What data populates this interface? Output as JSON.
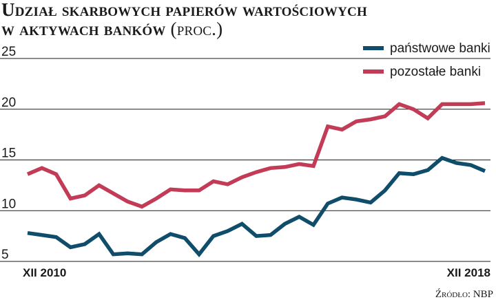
{
  "title": {
    "line1": "Udział skarbowych papierów wartościowych",
    "line2": "w aktywach banków",
    "unit": "(proc.)"
  },
  "source": "Źródło: NBP",
  "colors": {
    "panstwowe": "#0f4d6b",
    "pozostale": "#c23b57",
    "grid": "#1a1a1a"
  },
  "chart_data": {
    "type": "line",
    "title": "Udział skarbowych papierów wartościowych w aktywach banków (proc.)",
    "ylim": [
      5,
      25
    ],
    "yticks": [
      5,
      10,
      15,
      20,
      25
    ],
    "grid": true,
    "legend_position": "top-right",
    "x_tick_labels": [
      "XII 2010",
      "XII 2018"
    ],
    "x": [
      "XII 2010",
      "III 2011",
      "VI 2011",
      "IX 2011",
      "XII 2011",
      "III 2012",
      "VI 2012",
      "IX 2012",
      "XII 2012",
      "III 2013",
      "VI 2013",
      "IX 2013",
      "XII 2013",
      "III 2014",
      "VI 2014",
      "IX 2014",
      "XII 2014",
      "III 2015",
      "VI 2015",
      "IX 2015",
      "XII 2015",
      "III 2016",
      "VI 2016",
      "IX 2016",
      "XII 2016",
      "III 2017",
      "VI 2017",
      "IX 2017",
      "XII 2017",
      "III 2018",
      "VI 2018",
      "IX 2018",
      "XII 2018"
    ],
    "series": [
      {
        "name": "państwowe banki",
        "color": "#0f4d6b",
        "values": [
          7.8,
          7.6,
          7.4,
          6.4,
          6.7,
          7.7,
          5.7,
          5.8,
          5.7,
          6.9,
          7.7,
          7.3,
          5.7,
          7.5,
          8.0,
          8.7,
          7.5,
          7.6,
          8.7,
          9.4,
          8.6,
          10.7,
          11.3,
          11.1,
          10.8,
          12.0,
          13.7,
          13.6,
          14.0,
          15.2,
          14.7,
          14.5,
          13.9
        ]
      },
      {
        "name": "pozostałe banki",
        "color": "#c23b57",
        "values": [
          13.6,
          14.2,
          13.6,
          11.2,
          11.5,
          12.5,
          11.7,
          10.9,
          10.4,
          11.2,
          12.1,
          12.0,
          12.0,
          12.9,
          12.6,
          13.3,
          13.8,
          14.2,
          14.3,
          14.6,
          14.4,
          18.3,
          18.0,
          18.8,
          19.0,
          19.3,
          20.5,
          20.0,
          19.1,
          20.5,
          20.5,
          20.5,
          20.6
        ]
      }
    ]
  }
}
